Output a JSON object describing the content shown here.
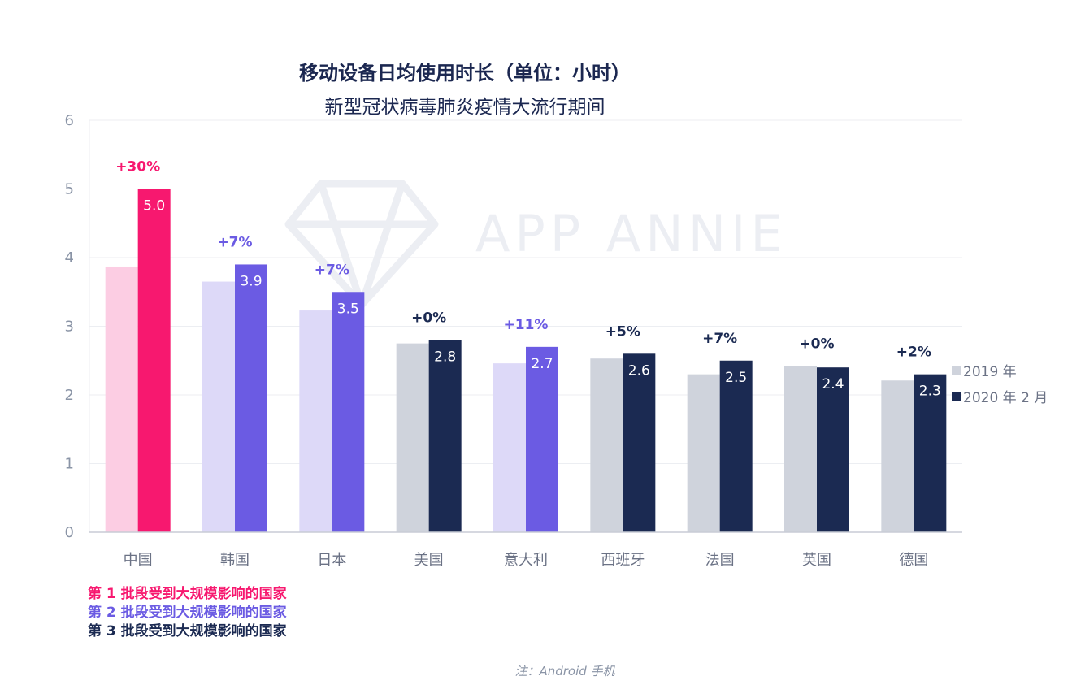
{
  "chart_data": {
    "type": "bar",
    "title": "移动设备日均使用时长（单位：小时）",
    "subtitle": "新型冠状病毒肺炎疫情大流行期间",
    "categories": [
      "中国",
      "韩国",
      "日本",
      "美国",
      "意大利",
      "西班牙",
      "法国",
      "英国",
      "德国"
    ],
    "series": [
      {
        "name": "2019 年",
        "values": [
          3.87,
          3.65,
          3.23,
          2.75,
          2.46,
          2.53,
          2.3,
          2.42,
          2.21
        ]
      },
      {
        "name": "2020 年 2 月",
        "values": [
          5.0,
          3.9,
          3.5,
          2.8,
          2.7,
          2.6,
          2.5,
          2.4,
          2.3
        ]
      }
    ],
    "value_labels": [
      "5.0",
      "3.9",
      "3.5",
      "2.8",
      "2.7",
      "2.6",
      "2.5",
      "2.4",
      "2.3"
    ],
    "growth_labels": [
      "+30%",
      "+7%",
      "+7%",
      "+0%",
      "+11%",
      "+5%",
      "+7%",
      "+0%",
      "+2%"
    ],
    "wave": [
      1,
      2,
      2,
      3,
      2,
      3,
      3,
      3,
      3
    ],
    "ylim": [
      0,
      6
    ],
    "yticks": [
      "0",
      "1",
      "2",
      "3",
      "4",
      "5",
      "6"
    ],
    "grid": true,
    "legend_position": "right",
    "xlabel": "",
    "ylabel": ""
  },
  "wave_colors": {
    "1": {
      "light": "#fccde3",
      "dark": "#f7186f"
    },
    "2": {
      "light": "#ddd9f8",
      "dark": "#6b5be3"
    },
    "3": {
      "light": "#cfd3dc",
      "dark": "#1b2a52"
    }
  },
  "legend": [
    {
      "label": "2019 年",
      "color": "#cfd3dc"
    },
    {
      "label": "2020 年 2 月",
      "color": "#1b2a52"
    }
  ],
  "wave_notes": [
    {
      "text": "第 1 批段受到大规模影响的国家",
      "color": "#f7186f"
    },
    {
      "text": "第 2 批段受到大规模影响的国家",
      "color": "#6b5be3"
    },
    {
      "text": "第 3 批段受到大规模影响的国家",
      "color": "#1b2a52"
    }
  ],
  "watermark": "APP ANNIE",
  "footnote": "注：Android 手机"
}
